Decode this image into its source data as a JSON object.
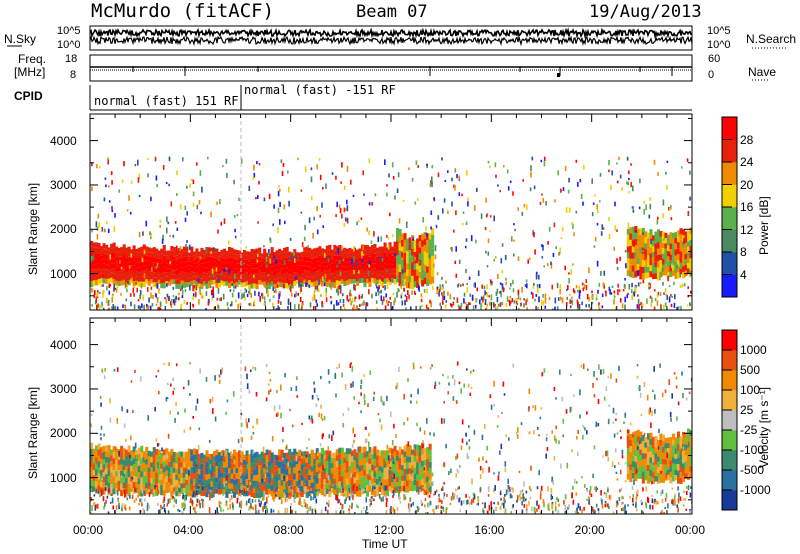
{
  "header": {
    "station": "McMurdo (fitACF)",
    "beam": "Beam 07",
    "date": "19/Aug/2013"
  },
  "noise_panel": {
    "left_label": "N.Sky",
    "right_label": "N.Search",
    "left_ticks": [
      "10^5",
      "10^0"
    ],
    "right_ticks": [
      "10^5",
      "10^0"
    ]
  },
  "freq_panel": {
    "left_label_line1": "Freq.",
    "left_label_line2": "[MHz]",
    "left_ticks": [
      "18",
      "8"
    ],
    "right_label": "Nave",
    "right_ticks": [
      "60",
      "0"
    ]
  },
  "cpid": {
    "label": "CPID",
    "modes": [
      "normal (fast) 151 RF",
      "normal (fast) -151 RF"
    ]
  },
  "chart_data": [
    {
      "type": "heatmap",
      "quantity": "Power",
      "ylabel": "Slant Range [km]",
      "ylim": [
        180,
        4600
      ],
      "yticks": [
        1000,
        2000,
        3000,
        4000
      ],
      "xlim_hours": [
        0,
        24
      ],
      "xticks": [
        "00:00",
        "04:00",
        "08:00",
        "12:00",
        "16:00",
        "20:00",
        "00:00"
      ],
      "colorbar_label": "Power [dB]",
      "colorbar_ticks": [
        "4",
        "8",
        "12",
        "16",
        "20",
        "24",
        "28"
      ],
      "colorbar_colors": [
        "#1a1aff",
        "#2050a8",
        "#4a8a60",
        "#5ab04a",
        "#f0d000",
        "#f08a00",
        "#e8200a",
        "#ff0000"
      ],
      "echo_regions": [
        {
          "t_start": 0.0,
          "t_end": 12.2,
          "r_low": 700,
          "r_high": 1600,
          "level": "high"
        },
        {
          "t_start": 12.2,
          "t_end": 13.6,
          "r_low": 700,
          "r_high": 1900,
          "level": "medium"
        },
        {
          "t_start": 21.4,
          "t_end": 24.0,
          "r_low": 900,
          "r_high": 2000,
          "level": "medium"
        }
      ]
    },
    {
      "type": "heatmap",
      "quantity": "Velocity",
      "ylabel": "Slant Range [km]",
      "ylim": [
        180,
        4600
      ],
      "yticks": [
        1000,
        2000,
        3000,
        4000
      ],
      "xlim_hours": [
        0,
        24
      ],
      "xticks": [
        "00:00",
        "04:00",
        "08:00",
        "12:00",
        "16:00",
        "20:00",
        "00:00"
      ],
      "xlabel": "Time UT",
      "colorbar_label": "Velocity [m s⁻¹]",
      "colorbar_ticks": [
        "1000",
        "500",
        "100",
        "25",
        "-25",
        "-100",
        "-500",
        "-1000"
      ],
      "colorbar_colors": [
        "#1a3a9a",
        "#2a70a0",
        "#3a8a70",
        "#60c040",
        "#bebebe",
        "#f0b040",
        "#f08a00",
        "#e85010",
        "#ff0000"
      ],
      "echo_regions": [
        {
          "t_start": 0.0,
          "t_end": 13.5,
          "r_low": 600,
          "r_high": 1650,
          "level": "mixed"
        },
        {
          "t_start": 21.4,
          "t_end": 24.0,
          "r_low": 900,
          "r_high": 2000,
          "level": "mixed"
        }
      ]
    }
  ]
}
